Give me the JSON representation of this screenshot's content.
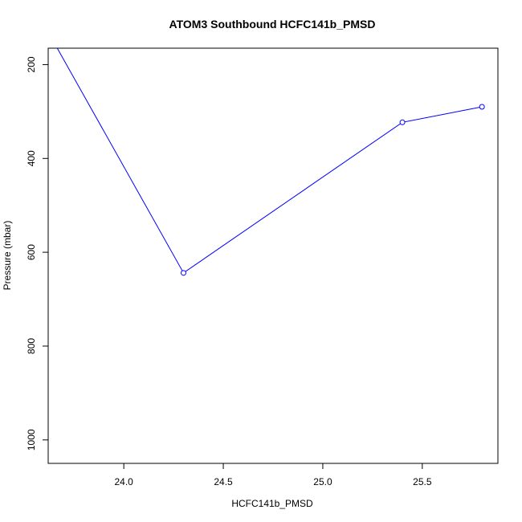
{
  "chart_data": {
    "type": "line",
    "title": "ATOM3 Southbound HCFC141b_PMSD",
    "xlabel": "HCFC141b_PMSD",
    "ylabel": "Pressure (mbar)",
    "xlim": [
      23.62,
      25.88
    ],
    "ylim": [
      1050,
      165
    ],
    "y_inverted": true,
    "x_ticks": [
      24.0,
      24.5,
      25.0,
      25.5
    ],
    "x_tick_labels": [
      "24.0",
      "24.5",
      "25.0",
      "25.5"
    ],
    "y_ticks": [
      200,
      400,
      600,
      800,
      1000
    ],
    "y_tick_labels": [
      "200",
      "400",
      "600",
      "800",
      "1000"
    ],
    "series": [
      {
        "color": "#0000ff",
        "points": [
          {
            "x": 23.5,
            "y": 40
          },
          {
            "x": 24.3,
            "y": 644
          },
          {
            "x": 25.4,
            "y": 323
          },
          {
            "x": 25.8,
            "y": 290
          }
        ]
      }
    ],
    "grid": false,
    "legend": "none"
  }
}
